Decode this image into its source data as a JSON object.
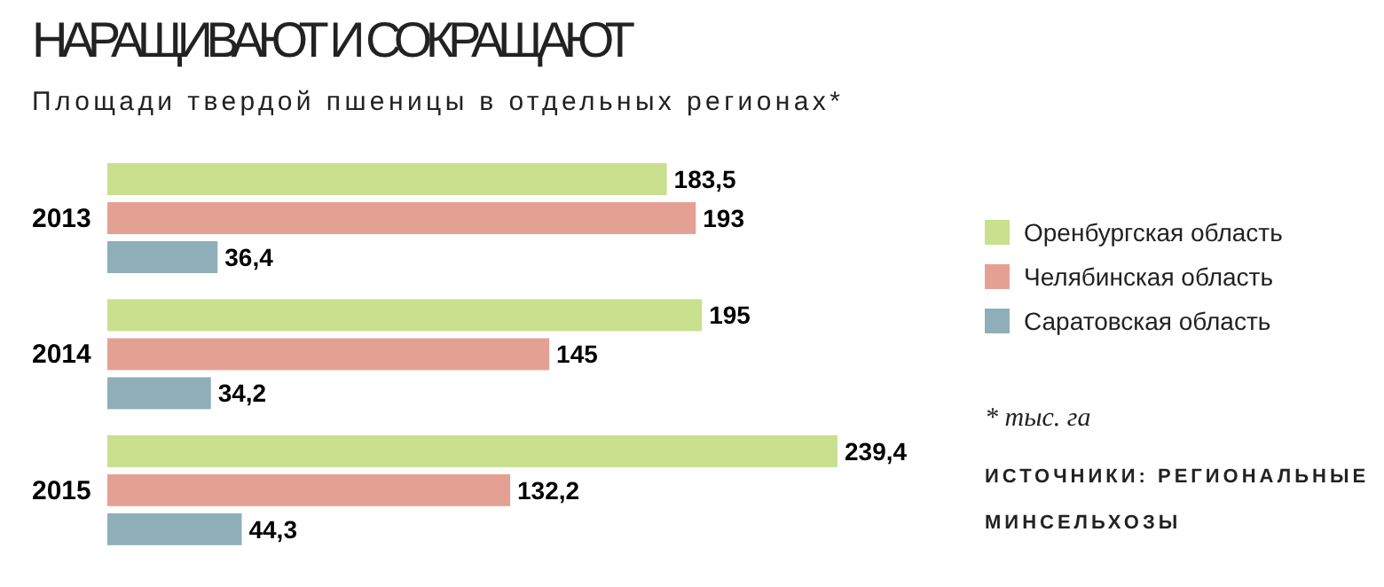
{
  "chart_data": {
    "type": "bar",
    "orientation": "horizontal",
    "title": "НАРАЩИВАЮТ И СОКРАЩАЮТ",
    "subtitle": "Площади твердой пшеницы в отдельных регионах*",
    "categories": [
      "2013",
      "2014",
      "2015"
    ],
    "series": [
      {
        "name": "Оренбургская область",
        "color": "#c9e08e",
        "values": [
          183.5,
          195,
          239.4
        ],
        "value_labels": [
          "183,5",
          "195",
          "239,4"
        ]
      },
      {
        "name": "Челябинская область",
        "color": "#e4a193",
        "values": [
          193,
          145,
          132.2
        ],
        "value_labels": [
          "193",
          "145",
          "132,2"
        ]
      },
      {
        "name": "Саратовская область",
        "color": "#8fafb8",
        "values": [
          36.4,
          34.2,
          44.3
        ],
        "value_labels": [
          "36,4",
          "34,2",
          "44,3"
        ]
      }
    ],
    "legend": "right",
    "annotations": [
      "* тыс. га",
      "ИСТОЧНИКИ: РЕГИОНАЛЬНЫЕ МИНСЕЛЬХОЗЫ"
    ]
  }
}
